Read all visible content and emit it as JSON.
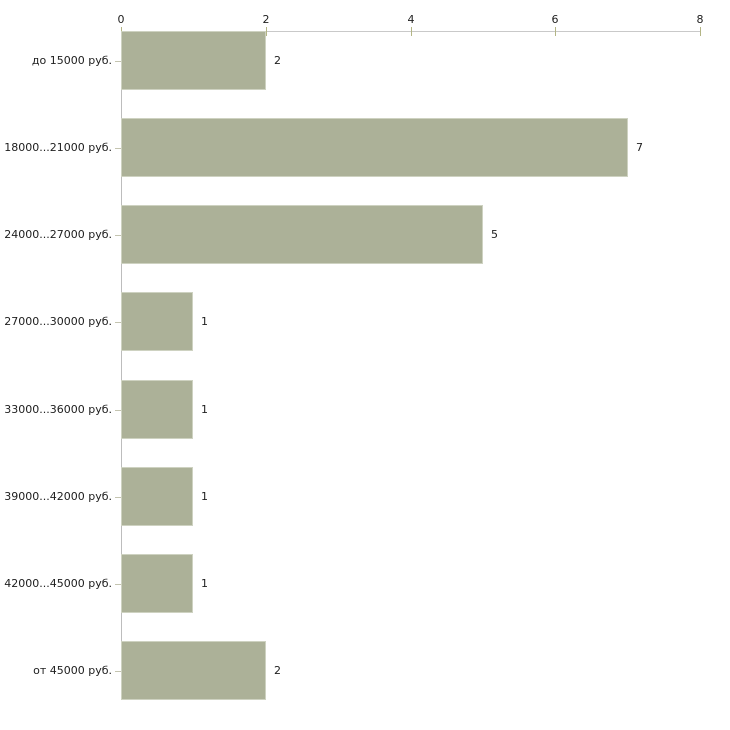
{
  "chart_data": {
    "type": "bar",
    "orientation": "horizontal",
    "title": "",
    "xlabel": "",
    "ylabel": "",
    "categories": [
      "до 15000 руб.",
      "18000...21000 руб.",
      "24000...27000 руб.",
      "27000...30000 руб.",
      "33000...36000 руб.",
      "39000...42000 руб.",
      "42000...45000 руб.",
      "от 45000 руб."
    ],
    "values": [
      2,
      7,
      5,
      1,
      1,
      1,
      1,
      2
    ],
    "value_labels": [
      "2",
      "7",
      "5",
      "1",
      "1",
      "1",
      "1",
      "2"
    ],
    "x_axis": {
      "position": "top",
      "min": 0,
      "max": 8,
      "ticks": [
        0,
        2,
        4,
        6,
        8
      ],
      "tick_labels": [
        "0",
        "2",
        "4",
        "6",
        "8"
      ]
    },
    "grid": false,
    "legend": false,
    "colors": {
      "bar_fill": "#acb198",
      "bar_border": "#ced2c1",
      "axis_line": "#c9c9c9",
      "x_tick_mark": "#b3b585",
      "y_tick_mark": "#c4c4b0",
      "text": "#202020",
      "background": "#ffffff"
    }
  }
}
